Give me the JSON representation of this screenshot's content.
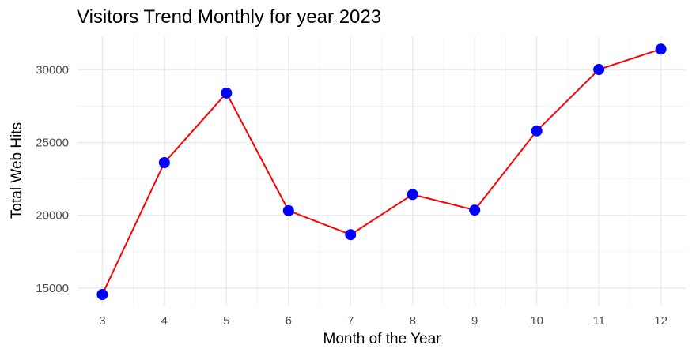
{
  "chart_data": {
    "type": "line",
    "title": "Visitors Trend Monthly for year 2023",
    "xlabel": "Month of the Year",
    "ylabel": "Total Web Hits",
    "x": [
      3,
      4,
      5,
      6,
      7,
      8,
      9,
      10,
      11,
      12
    ],
    "y": [
      14560,
      23620,
      28400,
      20320,
      18670,
      21430,
      20360,
      25800,
      30020,
      31420
    ],
    "xlim": [
      2.6,
      12.4
    ],
    "ylim": [
      13800,
      32300
    ],
    "xticks": [
      3,
      4,
      5,
      6,
      7,
      8,
      9,
      10,
      11,
      12
    ],
    "yticks": [
      15000,
      20000,
      25000,
      30000
    ],
    "line_color": "#ff0000",
    "point_color": "#0000ff",
    "grid": true,
    "legend": "none"
  }
}
